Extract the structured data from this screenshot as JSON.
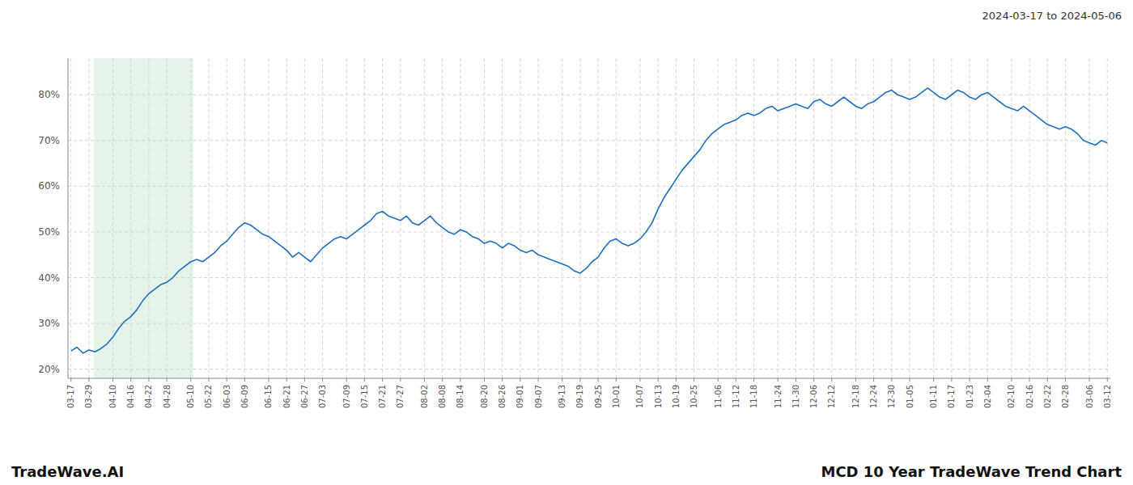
{
  "chart_data": {
    "type": "line",
    "title": "MCD 10 Year TradeWave Trend Chart",
    "subtitle": "2024-03-17 to 2024-05-06",
    "annotations": [
      "TradeWave.AI"
    ],
    "color": "#1f6fbd",
    "grid": true,
    "ylim": [
      18,
      88
    ],
    "yticks": [
      {
        "value": 20,
        "label": "20%"
      },
      {
        "value": 30,
        "label": "30%"
      },
      {
        "value": 40,
        "label": "40%"
      },
      {
        "value": 50,
        "label": "50%"
      },
      {
        "value": 60,
        "label": "60%"
      },
      {
        "value": 70,
        "label": "70%"
      },
      {
        "value": 80,
        "label": "80%"
      }
    ],
    "shaded_region": {
      "start": 3.806,
      "end": 20.414,
      "color": "#d4edda"
    },
    "categories": [
      "03-17",
      null,
      null,
      "03-29",
      null,
      null,
      null,
      "04-10",
      null,
      null,
      "04-16",
      null,
      null,
      "04-22",
      null,
      null,
      "04-28",
      null,
      null,
      null,
      "05-10",
      null,
      null,
      "05-22",
      null,
      null,
      "06-03",
      null,
      null,
      "06-09",
      null,
      null,
      null,
      "06-15",
      null,
      null,
      "06-21",
      null,
      null,
      "06-27",
      null,
      null,
      "07-03",
      null,
      null,
      null,
      "07-09",
      null,
      null,
      "07-15",
      null,
      null,
      "07-21",
      null,
      null,
      "07-27",
      null,
      null,
      null,
      "08-02",
      null,
      null,
      "08-08",
      null,
      null,
      "08-14",
      null,
      null,
      null,
      "08-20",
      null,
      null,
      "08-26",
      null,
      null,
      "09-01",
      null,
      null,
      "09-07",
      null,
      null,
      null,
      "09-13",
      null,
      null,
      "09-19",
      null,
      null,
      "09-25",
      null,
      null,
      "10-01",
      null,
      null,
      null,
      "10-07",
      null,
      null,
      "10-13",
      null,
      null,
      "10-19",
      null,
      null,
      "10-25",
      null,
      null,
      null,
      "11-06",
      null,
      null,
      "11-12",
      null,
      null,
      "11-18",
      null,
      null,
      null,
      "11-24",
      null,
      null,
      "11-30",
      null,
      null,
      "12-06",
      null,
      null,
      "12-12",
      null,
      null,
      null,
      "12-18",
      null,
      null,
      "12-24",
      null,
      null,
      "12-30",
      null,
      null,
      "01-05",
      null,
      null,
      null,
      "01-11",
      null,
      null,
      "01-17",
      null,
      null,
      "01-23",
      null,
      null,
      "02-04",
      null,
      null,
      null,
      "02-10",
      null,
      null,
      "02-16",
      null,
      null,
      "02-22",
      null,
      null,
      "02-28",
      null,
      null,
      null,
      "03-06",
      null,
      null,
      "03-12"
    ],
    "values": [
      24.0,
      24.8,
      23.5,
      24.2,
      23.8,
      24.5,
      25.5,
      27.0,
      29.0,
      30.5,
      31.5,
      33.0,
      35.0,
      36.5,
      37.5,
      38.5,
      39.0,
      40.0,
      41.5,
      42.5,
      43.5,
      44.0,
      43.5,
      44.5,
      45.5,
      47.0,
      48.0,
      49.5,
      51.0,
      52.0,
      51.5,
      50.5,
      49.5,
      49.0,
      48.0,
      47.0,
      46.0,
      44.5,
      45.5,
      44.5,
      43.5,
      45.0,
      46.5,
      47.5,
      48.5,
      49.0,
      48.5,
      49.5,
      50.5,
      51.5,
      52.5,
      54.0,
      54.5,
      53.5,
      53.0,
      52.5,
      53.5,
      52.0,
      51.5,
      52.5,
      53.5,
      52.0,
      51.0,
      50.0,
      49.5,
      50.5,
      50.0,
      49.0,
      48.5,
      47.5,
      48.0,
      47.5,
      46.5,
      47.5,
      47.0,
      46.0,
      45.5,
      46.0,
      45.0,
      44.5,
      44.0,
      43.5,
      43.0,
      42.5,
      41.5,
      41.0,
      42.0,
      43.5,
      44.5,
      46.5,
      48.0,
      48.5,
      47.5,
      47.0,
      47.5,
      48.5,
      50.0,
      52.0,
      55.0,
      57.5,
      59.5,
      61.5,
      63.5,
      65.0,
      66.5,
      68.0,
      70.0,
      71.5,
      72.5,
      73.5,
      74.0,
      74.5,
      75.5,
      76.0,
      75.5,
      76.0,
      77.0,
      77.5,
      76.5,
      77.0,
      77.5,
      78.0,
      77.5,
      77.0,
      78.5,
      79.0,
      78.0,
      77.5,
      78.5,
      79.5,
      78.5,
      77.5,
      77.0,
      78.0,
      78.5,
      79.5,
      80.5,
      81.0,
      80.0,
      79.5,
      79.0,
      79.5,
      80.5,
      81.5,
      80.5,
      79.5,
      79.0,
      80.0,
      81.0,
      80.5,
      79.5,
      79.0,
      80.0,
      80.5,
      79.5,
      78.5,
      77.5,
      77.0,
      76.5,
      77.5,
      76.5,
      75.5,
      74.5,
      73.5,
      73.0,
      72.5,
      73.0,
      72.5,
      71.5,
      70.0,
      69.5,
      69.0,
      70.0,
      69.5
    ]
  }
}
